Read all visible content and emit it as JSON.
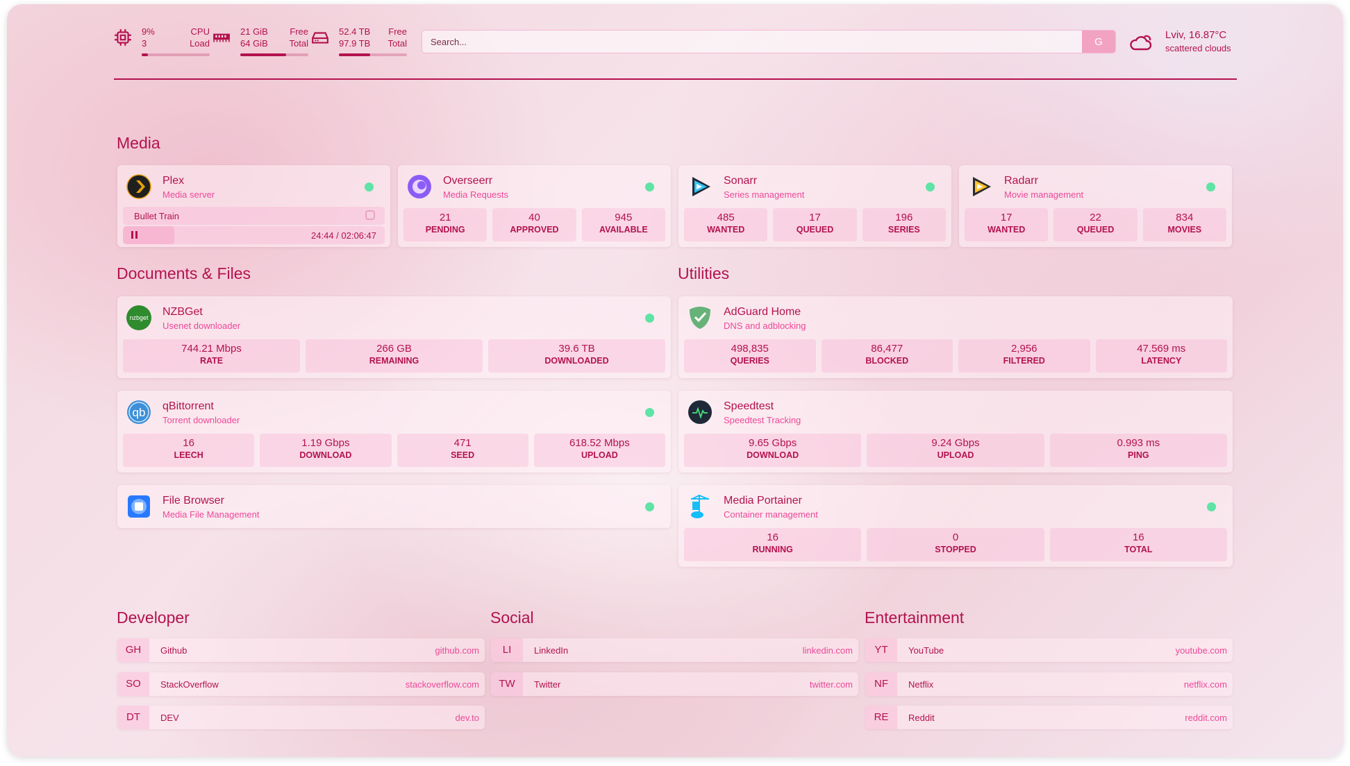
{
  "topbar": {
    "cpu": {
      "icon": "cpu-icon",
      "v1": "9%",
      "v2": "3",
      "l1": "CPU",
      "l2": "Load",
      "fill": 0.09
    },
    "memory": {
      "icon": "memory-icon",
      "v1": "21 GiB",
      "v2": "64 GiB",
      "l1": "Free",
      "l2": "Total",
      "fill": 0.67
    },
    "disk": {
      "icon": "disk-icon",
      "v1": "52.4 TB",
      "v2": "97.9 TB",
      "l1": "Free",
      "l2": "Total",
      "fill": 0.46
    },
    "search": {
      "placeholder": "Search...",
      "button": "G"
    },
    "weather": {
      "icon": "cloud-icon",
      "location_temp": "Lviv, 16.87°C",
      "condition": "scattered clouds"
    }
  },
  "colors": {
    "accent": "#b3124e",
    "subtitle": "#ec4899",
    "status_online": "#5fe3a6"
  },
  "sections": {
    "media": {
      "title": "Media",
      "cards": [
        {
          "icon": "plex-icon",
          "title": "Plex",
          "subtitle": "Media server",
          "status": "online",
          "now_playing": {
            "title": "Bullet Train",
            "time": "24:44 / 02:06:47",
            "progress": 0.195,
            "state": "paused"
          }
        },
        {
          "icon": "overseerr-icon",
          "title": "Overseerr",
          "subtitle": "Media Requests",
          "status": "online",
          "stats": [
            {
              "value": "21",
              "label": "PENDING"
            },
            {
              "value": "40",
              "label": "APPROVED"
            },
            {
              "value": "945",
              "label": "AVAILABLE"
            }
          ]
        },
        {
          "icon": "sonarr-icon",
          "title": "Sonarr",
          "subtitle": "Series management",
          "status": "online",
          "stats": [
            {
              "value": "485",
              "label": "WANTED"
            },
            {
              "value": "17",
              "label": "QUEUED"
            },
            {
              "value": "196",
              "label": "SERIES"
            }
          ]
        },
        {
          "icon": "radarr-icon",
          "title": "Radarr",
          "subtitle": "Movie management",
          "status": "online",
          "stats": [
            {
              "value": "17",
              "label": "WANTED"
            },
            {
              "value": "22",
              "label": "QUEUED"
            },
            {
              "value": "834",
              "label": "MOVIES"
            }
          ]
        }
      ]
    },
    "documents": {
      "title": "Documents & Files",
      "cards": [
        {
          "icon": "nzbget-icon",
          "title": "NZBGet",
          "subtitle": "Usenet downloader",
          "status": "online",
          "stats": [
            {
              "value": "744.21 Mbps",
              "label": "RATE"
            },
            {
              "value": "266 GB",
              "label": "REMAINING"
            },
            {
              "value": "39.6 TB",
              "label": "DOWNLOADED"
            }
          ]
        },
        {
          "icon": "qbittorrent-icon",
          "title": "qBittorrent",
          "subtitle": "Torrent downloader",
          "status": "online",
          "stats": [
            {
              "value": "16",
              "label": "LEECH"
            },
            {
              "value": "1.19 Gbps",
              "label": "DOWNLOAD"
            },
            {
              "value": "471",
              "label": "SEED"
            },
            {
              "value": "618.52 Mbps",
              "label": "UPLOAD"
            }
          ]
        },
        {
          "icon": "filebrowser-icon",
          "title": "File Browser",
          "subtitle": "Media File Management",
          "status": "online"
        }
      ]
    },
    "utilities": {
      "title": "Utilities",
      "cards": [
        {
          "icon": "adguard-icon",
          "title": "AdGuard Home",
          "subtitle": "DNS and adblocking",
          "stats": [
            {
              "value": "498,835",
              "label": "QUERIES"
            },
            {
              "value": "86,477",
              "label": "BLOCKED"
            },
            {
              "value": "2,956",
              "label": "FILTERED"
            },
            {
              "value": "47.569 ms",
              "label": "LATENCY"
            }
          ]
        },
        {
          "icon": "speedtest-icon",
          "title": "Speedtest",
          "subtitle": "Speedtest Tracking",
          "stats": [
            {
              "value": "9.65 Gbps",
              "label": "DOWNLOAD"
            },
            {
              "value": "9.24 Gbps",
              "label": "UPLOAD"
            },
            {
              "value": "0.993 ms",
              "label": "PING"
            }
          ]
        },
        {
          "icon": "portainer-icon",
          "title": "Media Portainer",
          "subtitle": "Container management",
          "status": "online",
          "stats": [
            {
              "value": "16",
              "label": "RUNNING"
            },
            {
              "value": "0",
              "label": "STOPPED"
            },
            {
              "value": "16",
              "label": "TOTAL"
            }
          ]
        }
      ]
    }
  },
  "bookmarks": [
    {
      "title": "Developer",
      "links": [
        {
          "abbr": "GH",
          "name": "Github",
          "url": "github.com"
        },
        {
          "abbr": "SO",
          "name": "StackOverflow",
          "url": "stackoverflow.com"
        },
        {
          "abbr": "DT",
          "name": "DEV",
          "url": "dev.to"
        }
      ]
    },
    {
      "title": "Social",
      "links": [
        {
          "abbr": "LI",
          "name": "LinkedIn",
          "url": "linkedin.com"
        },
        {
          "abbr": "TW",
          "name": "Twitter",
          "url": "twitter.com"
        }
      ]
    },
    {
      "title": "Entertainment",
      "links": [
        {
          "abbr": "YT",
          "name": "YouTube",
          "url": "youtube.com"
        },
        {
          "abbr": "NF",
          "name": "Netflix",
          "url": "netflix.com"
        },
        {
          "abbr": "RE",
          "name": "Reddit",
          "url": "reddit.com"
        }
      ]
    }
  ]
}
